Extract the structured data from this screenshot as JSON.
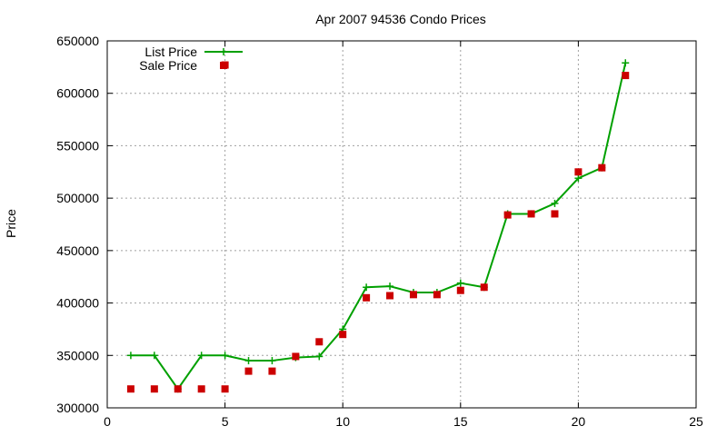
{
  "chart_data": {
    "type": "line",
    "title": "Apr 2007 94536 Condo Prices",
    "xlabel": "",
    "ylabel": "Price",
    "xlim": [
      0,
      25
    ],
    "ylim": [
      300000,
      650000
    ],
    "x_ticks": [
      0,
      5,
      10,
      15,
      20,
      25
    ],
    "y_ticks": [
      300000,
      350000,
      400000,
      450000,
      500000,
      550000,
      600000,
      650000
    ],
    "grid": true,
    "legend_position": "top-left",
    "series": [
      {
        "name": "List Price",
        "style": "line-with-plus-markers",
        "color": "#00a000",
        "x": [
          1,
          2,
          3,
          4,
          5,
          6,
          7,
          8,
          9,
          10,
          11,
          12,
          13,
          14,
          15,
          16,
          17,
          18,
          19,
          20,
          21,
          22
        ],
        "values": [
          350000,
          350000,
          318000,
          350000,
          350000,
          345000,
          345000,
          348000,
          349000,
          375000,
          415000,
          416000,
          410000,
          410000,
          419000,
          415000,
          485000,
          485000,
          495000,
          519000,
          529000,
          629000
        ]
      },
      {
        "name": "Sale Price",
        "style": "square-points",
        "color": "#cc0000",
        "x": [
          1,
          2,
          3,
          4,
          5,
          5,
          6,
          7,
          8,
          9,
          10,
          11,
          12,
          13,
          14,
          15,
          16,
          17,
          18,
          19,
          20,
          21,
          22
        ],
        "values": [
          318000,
          318000,
          318000,
          318000,
          318000,
          627000,
          335000,
          335000,
          349000,
          363000,
          370000,
          405000,
          407000,
          408000,
          408000,
          412000,
          415000,
          484000,
          485000,
          485000,
          525000,
          529000,
          617000
        ]
      }
    ]
  }
}
